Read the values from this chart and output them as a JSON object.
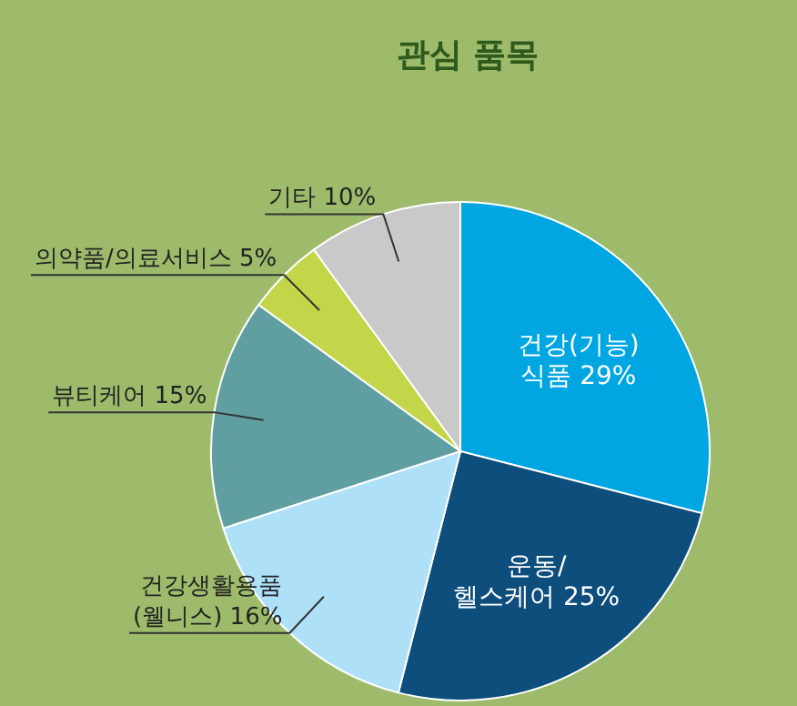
{
  "chart_data": {
    "type": "pie",
    "title": "관심 품목",
    "categories": [
      "건강(기능)\n식품",
      "운동/\n헬스케어",
      "건강생활용품\n(웰니스)",
      "뷰티케어",
      "의약품/의료서비스",
      "기타"
    ],
    "values": [
      29,
      25,
      16,
      15,
      5,
      10
    ],
    "value_labels": [
      "29%",
      "25%",
      "16%",
      "15%",
      "5%",
      "10%"
    ],
    "colors": [
      "#00a6e2",
      "#0d4e7c",
      "#aee0f8",
      "#5f9fa2",
      "#c3d548",
      "#c9c9c9"
    ]
  }
}
